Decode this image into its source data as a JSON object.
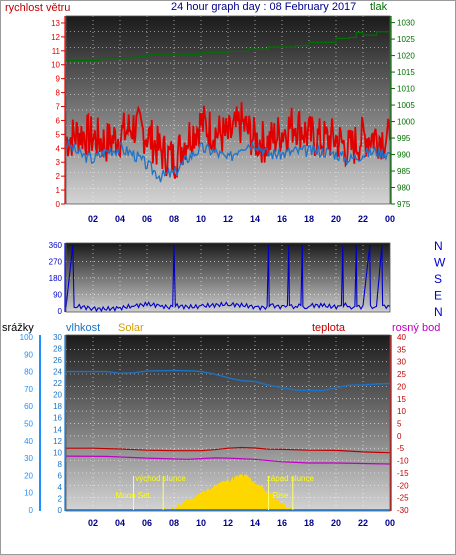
{
  "colors": {
    "wind": "#e00000",
    "gust": "#1e73c8",
    "pressure": "#007000",
    "direction": "#0000c8",
    "humidity": "#1a73c8",
    "solar": "#ffd700",
    "temperature": "#c00000",
    "dewpoint": "#c000c0",
    "rain": "#1e90ff",
    "title": "#00008b",
    "xtick": "#00008b"
  },
  "chart_data": [
    {
      "type": "line",
      "title": "24 hour graph day : 08 February 2017",
      "left_axis_label": "rychlost větru",
      "right_axis_label": "tlak",
      "x_ticks": [
        "02",
        "04",
        "06",
        "08",
        "10",
        "12",
        "14",
        "16",
        "18",
        "20",
        "22",
        "00"
      ],
      "y_left_ticks": [
        "0",
        "1",
        "2",
        "3",
        "4",
        "5",
        "6",
        "7",
        "8",
        "9",
        "10",
        "11",
        "12",
        "13"
      ],
      "y_left_range": [
        0,
        13.5
      ],
      "y_right_ticks": [
        "975",
        "980",
        "985",
        "990",
        "995",
        "1000",
        "1005",
        "1010",
        "1015",
        "1020",
        "1025",
        "1030"
      ],
      "y_right_range": [
        975,
        1032
      ],
      "grid": true,
      "series": [
        {
          "role": "wind_avg",
          "points": [
            [
              0,
              4.6
            ],
            [
              1,
              5.1
            ],
            [
              2,
              4.8
            ],
            [
              3,
              4.4
            ],
            [
              4,
              4.9
            ],
            [
              5,
              5.6
            ],
            [
              6,
              5.0
            ],
            [
              7,
              3.8
            ],
            [
              8,
              3.2
            ],
            [
              9,
              4.8
            ],
            [
              10,
              5.8
            ],
            [
              11,
              5.2
            ],
            [
              12,
              4.8
            ],
            [
              13,
              5.8
            ],
            [
              14,
              4.6
            ],
            [
              15,
              4.4
            ],
            [
              16,
              5.2
            ],
            [
              17,
              5.8
            ],
            [
              18,
              4.9
            ],
            [
              19,
              4.6
            ],
            [
              20,
              4.7
            ],
            [
              21,
              3.9
            ],
            [
              22,
              4.8
            ],
            [
              23,
              4.9
            ],
            [
              24,
              4.6
            ]
          ]
        },
        {
          "role": "wind_gust",
          "points": [
            [
              0,
              4.4
            ],
            [
              1,
              3.6
            ],
            [
              2,
              3.2
            ],
            [
              3,
              3.8
            ],
            [
              4,
              4.0
            ],
            [
              5,
              3.6
            ],
            [
              6,
              2.8
            ],
            [
              7,
              2.0
            ],
            [
              8,
              2.2
            ],
            [
              9,
              3.3
            ],
            [
              10,
              4.0
            ],
            [
              11,
              3.8
            ],
            [
              12,
              3.2
            ],
            [
              13,
              4.2
            ],
            [
              14,
              4.4
            ],
            [
              15,
              3.6
            ],
            [
              16,
              3.6
            ],
            [
              17,
              3.8
            ],
            [
              18,
              3.8
            ],
            [
              19,
              3.8
            ],
            [
              20,
              3.6
            ],
            [
              21,
              3.2
            ],
            [
              22,
              3.6
            ],
            [
              23,
              3.8
            ],
            [
              24,
              3.6
            ]
          ]
        },
        {
          "role": "pressure",
          "points": [
            [
              0,
              1018.5
            ],
            [
              2,
              1018.5
            ],
            [
              2.5,
              1019.3
            ],
            [
              5,
              1019.6
            ],
            [
              6,
              1020.2
            ],
            [
              9,
              1020.3
            ],
            [
              10,
              1021.0
            ],
            [
              12,
              1021.3
            ],
            [
              13.5,
              1022.0
            ],
            [
              15,
              1022.6
            ],
            [
              17,
              1023.0
            ],
            [
              18,
              1024.0
            ],
            [
              20,
              1025.2
            ],
            [
              21,
              1025.5
            ],
            [
              21.5,
              1027.0
            ],
            [
              22,
              1026.2
            ],
            [
              23,
              1027.2
            ],
            [
              24,
              1027.5
            ]
          ]
        }
      ]
    },
    {
      "type": "line",
      "y_left_ticks": [
        "360",
        "270",
        "180",
        "90",
        "0"
      ],
      "y_range": [
        0,
        360
      ],
      "right_labels": [
        "N",
        "W",
        "S",
        "E",
        "N"
      ],
      "series": [
        {
          "role": "wind_direction",
          "points": [
            [
              0,
              20
            ],
            [
              0.5,
              360
            ],
            [
              0.6,
              20
            ],
            [
              2,
              15
            ],
            [
              4,
              20
            ],
            [
              5,
              25
            ],
            [
              6,
              30
            ],
            [
              7,
              25
            ],
            [
              7.9,
              25
            ],
            [
              8,
              360
            ],
            [
              8.1,
              25
            ],
            [
              10,
              30
            ],
            [
              12,
              30
            ],
            [
              14,
              25
            ],
            [
              14.9,
              25
            ],
            [
              15,
              360
            ],
            [
              15.05,
              25
            ],
            [
              16,
              30
            ],
            [
              16.4,
              30
            ],
            [
              16.5,
              360
            ],
            [
              16.55,
              30
            ],
            [
              17,
              25
            ],
            [
              17.4,
              30
            ],
            [
              17.5,
              360
            ],
            [
              17.55,
              25
            ],
            [
              18,
              25
            ],
            [
              19,
              25
            ],
            [
              20.4,
              30
            ],
            [
              20.5,
              360
            ],
            [
              20.55,
              25
            ],
            [
              21,
              25
            ],
            [
              21.4,
              25
            ],
            [
              21.5,
              360
            ],
            [
              21.55,
              25
            ],
            [
              22,
              30
            ],
            [
              22.5,
              360
            ],
            [
              22.55,
              30
            ],
            [
              23,
              25
            ],
            [
              23.4,
              360
            ],
            [
              23.45,
              30
            ],
            [
              24,
              25
            ]
          ]
        }
      ]
    },
    {
      "type": "line",
      "labels": {
        "rain": "srážky",
        "humidity": "vlhkost",
        "solar": "Solar",
        "temperature": "teplota",
        "dewpoint": "rosný bod"
      },
      "x_ticks": [
        "02",
        "04",
        "06",
        "08",
        "10",
        "12",
        "14",
        "16",
        "18",
        "20",
        "22",
        "00"
      ],
      "y_rain_ticks": [
        "0",
        "10",
        "20",
        "30",
        "40",
        "50",
        "60",
        "70",
        "80",
        "90",
        "100"
      ],
      "y_hum_ticks": [
        "0",
        "2",
        "4",
        "6",
        "8",
        "10",
        "12",
        "14",
        "16",
        "18",
        "20",
        "22",
        "24",
        "26",
        "28",
        "30"
      ],
      "y_temp_ticks": [
        "-30",
        "-25",
        "-20",
        "-15",
        "-10",
        "-5",
        "0",
        "5",
        "10",
        "15",
        "20",
        "25",
        "30",
        "35",
        "40"
      ],
      "y_temp_range": [
        -30,
        40
      ],
      "annotations": {
        "moon_set": {
          "label": "Moon Set",
          "hour": 5.0
        },
        "sunrise": {
          "label": "východ slunce",
          "hour": 7.2
        },
        "sunset": {
          "label": "západ slunce",
          "hour": 16.8
        },
        "moon_rise": {
          "label": "Rise",
          "hour": 15.0
        }
      },
      "series": [
        {
          "role": "humidity",
          "unit_axis": "temperature",
          "points": [
            [
              0,
              26.0
            ],
            [
              3,
              26.0
            ],
            [
              4,
              25.3
            ],
            [
              5,
              25.5
            ],
            [
              6,
              26.2
            ],
            [
              8,
              26.4
            ],
            [
              9.5,
              26.3
            ],
            [
              10,
              26.0
            ],
            [
              11,
              25.0
            ],
            [
              12,
              23.5
            ],
            [
              13,
              22.3
            ],
            [
              14,
              22.0
            ],
            [
              15,
              20.5
            ],
            [
              16,
              19.5
            ],
            [
              17,
              18.5
            ],
            [
              18,
              18.3
            ],
            [
              19,
              18.3
            ],
            [
              20,
              19.5
            ],
            [
              21,
              20.5
            ],
            [
              22,
              20.6
            ],
            [
              23,
              21.0
            ],
            [
              24,
              21.2
            ]
          ]
        },
        {
          "role": "temperature",
          "unit_axis": "temperature",
          "points": [
            [
              0,
              -5.0
            ],
            [
              2,
              -5.0
            ],
            [
              4,
              -5.3
            ],
            [
              6,
              -5.8
            ],
            [
              8,
              -6.0
            ],
            [
              10,
              -6.0
            ],
            [
              11,
              -5.6
            ],
            [
              12,
              -5.0
            ],
            [
              13,
              -4.7
            ],
            [
              14,
              -4.9
            ],
            [
              15,
              -5.4
            ],
            [
              16,
              -5.5
            ],
            [
              18,
              -5.8
            ],
            [
              20,
              -5.9
            ],
            [
              22,
              -6.5
            ],
            [
              24,
              -6.8
            ]
          ]
        },
        {
          "role": "dewpoint",
          "unit_axis": "temperature",
          "points": [
            [
              0,
              -8.2
            ],
            [
              3,
              -8.3
            ],
            [
              6,
              -9.0
            ],
            [
              9,
              -9.5
            ],
            [
              10,
              -9.2
            ],
            [
              11,
              -8.9
            ],
            [
              12,
              -9.0
            ],
            [
              14,
              -9.5
            ],
            [
              16,
              -10.5
            ],
            [
              18,
              -11.0
            ],
            [
              20,
              -11.0
            ],
            [
              22,
              -11.2
            ],
            [
              24,
              -11.4
            ]
          ]
        },
        {
          "role": "solar",
          "unit_axis": "humidity",
          "points": [
            [
              7.2,
              0
            ],
            [
              8,
              0.4
            ],
            [
              9,
              1.5
            ],
            [
              10,
              3.0
            ],
            [
              11,
              4.2
            ],
            [
              12,
              5.2
            ],
            [
              12.5,
              5.6
            ],
            [
              13,
              6.0
            ],
            [
              13.5,
              5.7
            ],
            [
              14,
              4.8
            ],
            [
              15,
              3.0
            ],
            [
              16,
              1.2
            ],
            [
              16.8,
              0
            ]
          ]
        },
        {
          "role": "rain",
          "unit_axis": "rain",
          "points": [
            [
              0,
              0
            ],
            [
              24,
              0
            ]
          ]
        }
      ]
    }
  ]
}
